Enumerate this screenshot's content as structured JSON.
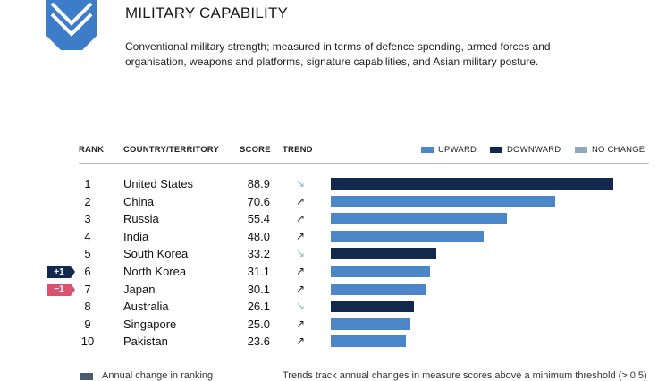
{
  "header": {
    "logo_icon": "chevron-octagon-icon",
    "title": "MILITARY CAPABILITY",
    "description": "Conventional military strength; measured in terms of defence spending, armed forces and organisation, weapons and platforms, signature capabilities, and Asian military posture."
  },
  "columns": {
    "rank": "RANK",
    "country": "COUNTRY/TERRITORY",
    "score": "SCORE",
    "trend": "TREND"
  },
  "legend": [
    {
      "label": "UPWARD",
      "color": "#4a86c8"
    },
    {
      "label": "DOWNWARD",
      "color": "#13284d"
    },
    {
      "label": "NO CHANGE",
      "color": "#8fa7bf"
    }
  ],
  "colors": {
    "up": "#4a86c8",
    "down": "#13284d",
    "change_positive": "#13284d",
    "change_negative": "#d9536e"
  },
  "chart_data": {
    "type": "bar",
    "orientation": "horizontal",
    "title": "MILITARY CAPABILITY",
    "xlim": [
      0,
      100
    ],
    "categories": [
      "United States",
      "China",
      "Russia",
      "India",
      "South Korea",
      "North Korea",
      "Japan",
      "Australia",
      "Singapore",
      "Pakistan"
    ],
    "values": [
      88.9,
      70.6,
      55.4,
      48.0,
      33.2,
      31.1,
      30.1,
      26.1,
      25.0,
      23.6
    ],
    "rows": [
      {
        "rank": "1",
        "country": "United States",
        "score": "88.9",
        "value": 88.9,
        "trend": "down",
        "trend_icon": "↘",
        "change": ""
      },
      {
        "rank": "2",
        "country": "China",
        "score": "70.6",
        "value": 70.6,
        "trend": "up",
        "trend_icon": "↗",
        "change": ""
      },
      {
        "rank": "3",
        "country": "Russia",
        "score": "55.4",
        "value": 55.4,
        "trend": "up",
        "trend_icon": "↗",
        "change": ""
      },
      {
        "rank": "4",
        "country": "India",
        "score": "48.0",
        "value": 48.0,
        "trend": "up",
        "trend_icon": "↗",
        "change": ""
      },
      {
        "rank": "5",
        "country": "South Korea",
        "score": "33.2",
        "value": 33.2,
        "trend": "down",
        "trend_icon": "↘",
        "change": ""
      },
      {
        "rank": "6",
        "country": "North Korea",
        "score": "31.1",
        "value": 31.1,
        "trend": "up",
        "trend_icon": "↗",
        "change": "+1"
      },
      {
        "rank": "7",
        "country": "Japan",
        "score": "30.1",
        "value": 30.1,
        "trend": "up",
        "trend_icon": "↗",
        "change": "−1"
      },
      {
        "rank": "8",
        "country": "Australia",
        "score": "26.1",
        "value": 26.1,
        "trend": "down",
        "trend_icon": "↘",
        "change": ""
      },
      {
        "rank": "9",
        "country": "Singapore",
        "score": "25.0",
        "value": 25.0,
        "trend": "up",
        "trend_icon": "↗",
        "change": ""
      },
      {
        "rank": "10",
        "country": "Pakistan",
        "score": "23.6",
        "value": 23.6,
        "trend": "up",
        "trend_icon": "↗",
        "change": ""
      }
    ]
  },
  "footer": {
    "change_note": "Annual change in ranking",
    "trend_note": "Trends track annual changes in measure scores above a minimum threshold (> 0.5)"
  }
}
